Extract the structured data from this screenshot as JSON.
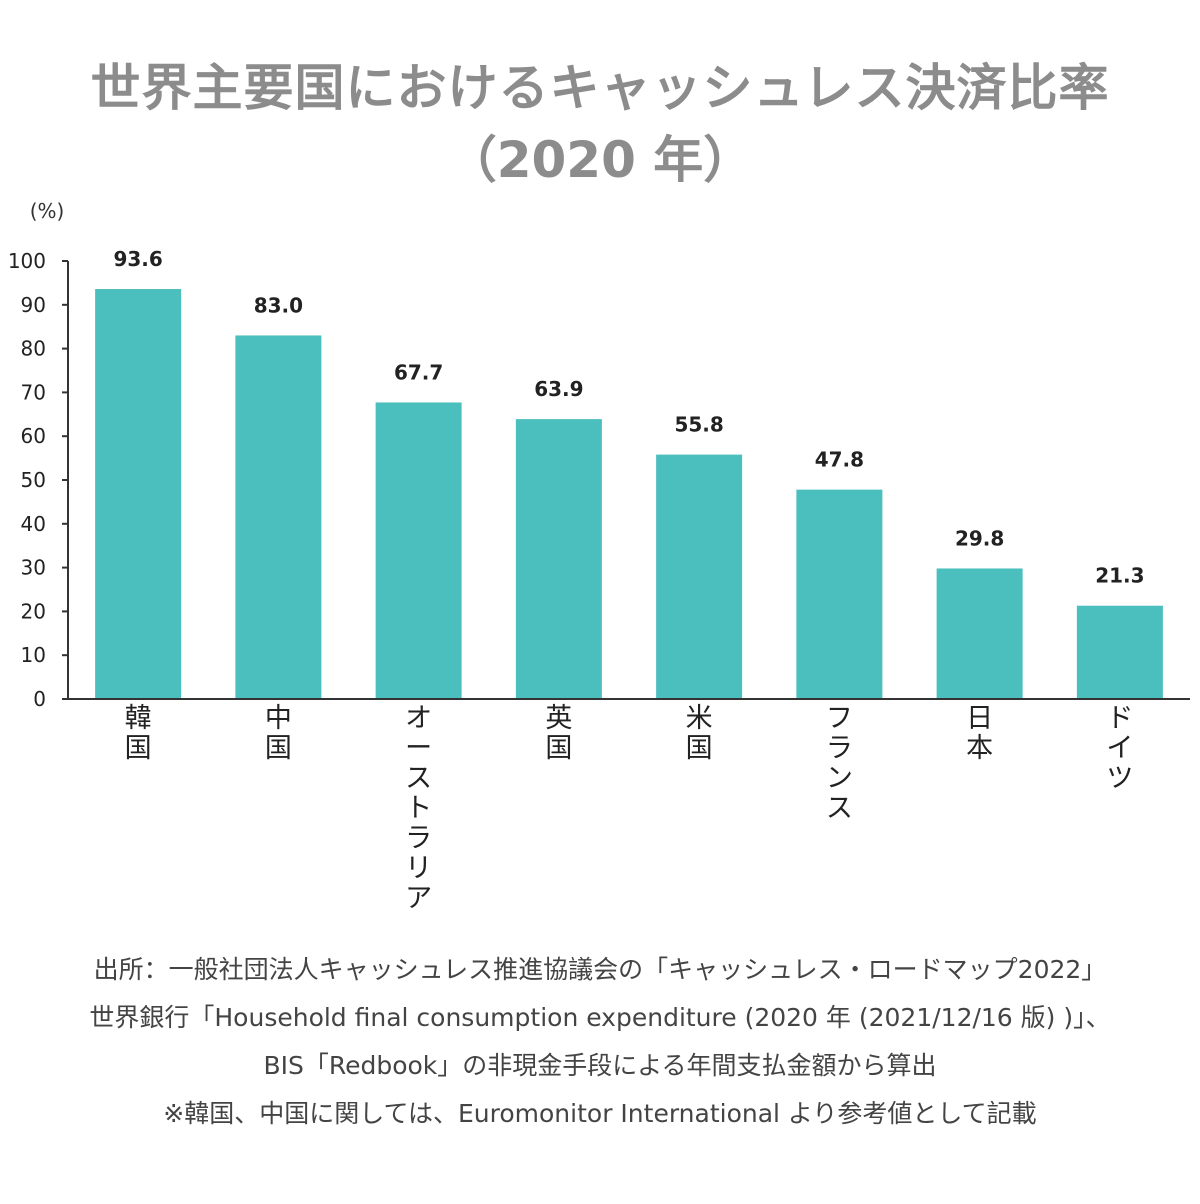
{
  "title": {
    "line1": "世界主要国におけるキャッシュレス決済比率",
    "line2": "（2020 年）"
  },
  "chart_data": {
    "type": "bar",
    "categories": [
      "韓国",
      "中国",
      "オーストラリア",
      "英国",
      "米国",
      "フランス",
      "日本",
      "ドイツ"
    ],
    "values": [
      93.6,
      83.0,
      67.7,
      63.9,
      55.8,
      47.8,
      29.8,
      21.3
    ],
    "value_labels": [
      "93.6",
      "83.0",
      "67.7",
      "63.9",
      "55.8",
      "47.8",
      "29.8",
      "21.3"
    ],
    "ylabel": "(%)",
    "ylim": [
      0,
      100
    ],
    "yticks": [
      0,
      10,
      20,
      30,
      40,
      50,
      60,
      70,
      80,
      90,
      100
    ],
    "grid": false,
    "bar_color": "#4bbfbd"
  },
  "source": {
    "line1": "出所：一般社団法人キャッシュレス推進協議会の「キャッシュレス・ロードマップ2022」",
    "line2": "世界銀行「Household final consumption expenditure (2020 年 (2021/12/16 版) )」、",
    "line3": "BIS「Redbook」の非現金手段による年間支払金額から算出",
    "line4": "※韓国、中国に関しては、Euromonitor International より参考値として記載"
  }
}
